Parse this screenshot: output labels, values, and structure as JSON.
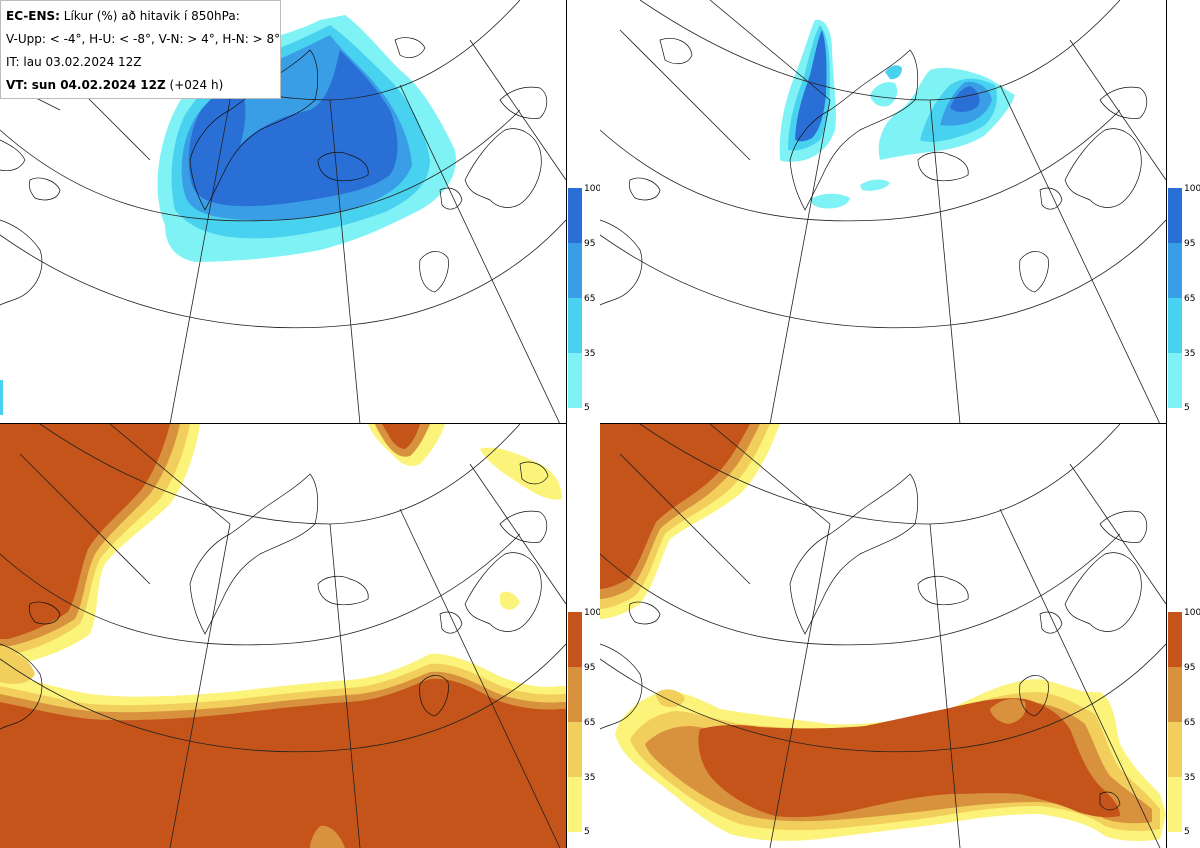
{
  "info": {
    "line1_bold": "EC-ENS:",
    "line1_rest": " Líkur (%) að hitavik í 850hPa:",
    "line2": "V-Upp: < -4°, H-U: < -8°, V-N: > 4°, H-N: > 8°",
    "line3": "IT: lau 03.02.2024 12Z",
    "line4_bold": "VT: sun 04.02.2024 12Z",
    "line4_rest": " (+024 h)"
  },
  "colorbar_ticks": [
    "100",
    "95",
    "65",
    "35",
    "5"
  ],
  "colors": {
    "cold_5": "#7ff2f5",
    "cold_35": "#49d2ef",
    "cold_65": "#3a9ee6",
    "cold_95": "#2a6fd6",
    "warm_5": "#fbf37a",
    "warm_35": "#f2cf5c",
    "warm_65": "#d8913c",
    "warm_95": "#c45419"
  },
  "panels": [
    {
      "id": "V-Upp",
      "scheme": "cold"
    },
    {
      "id": "H-U",
      "scheme": "cold"
    },
    {
      "id": "V-N",
      "scheme": "warm"
    },
    {
      "id": "H-N",
      "scheme": "warm"
    }
  ]
}
